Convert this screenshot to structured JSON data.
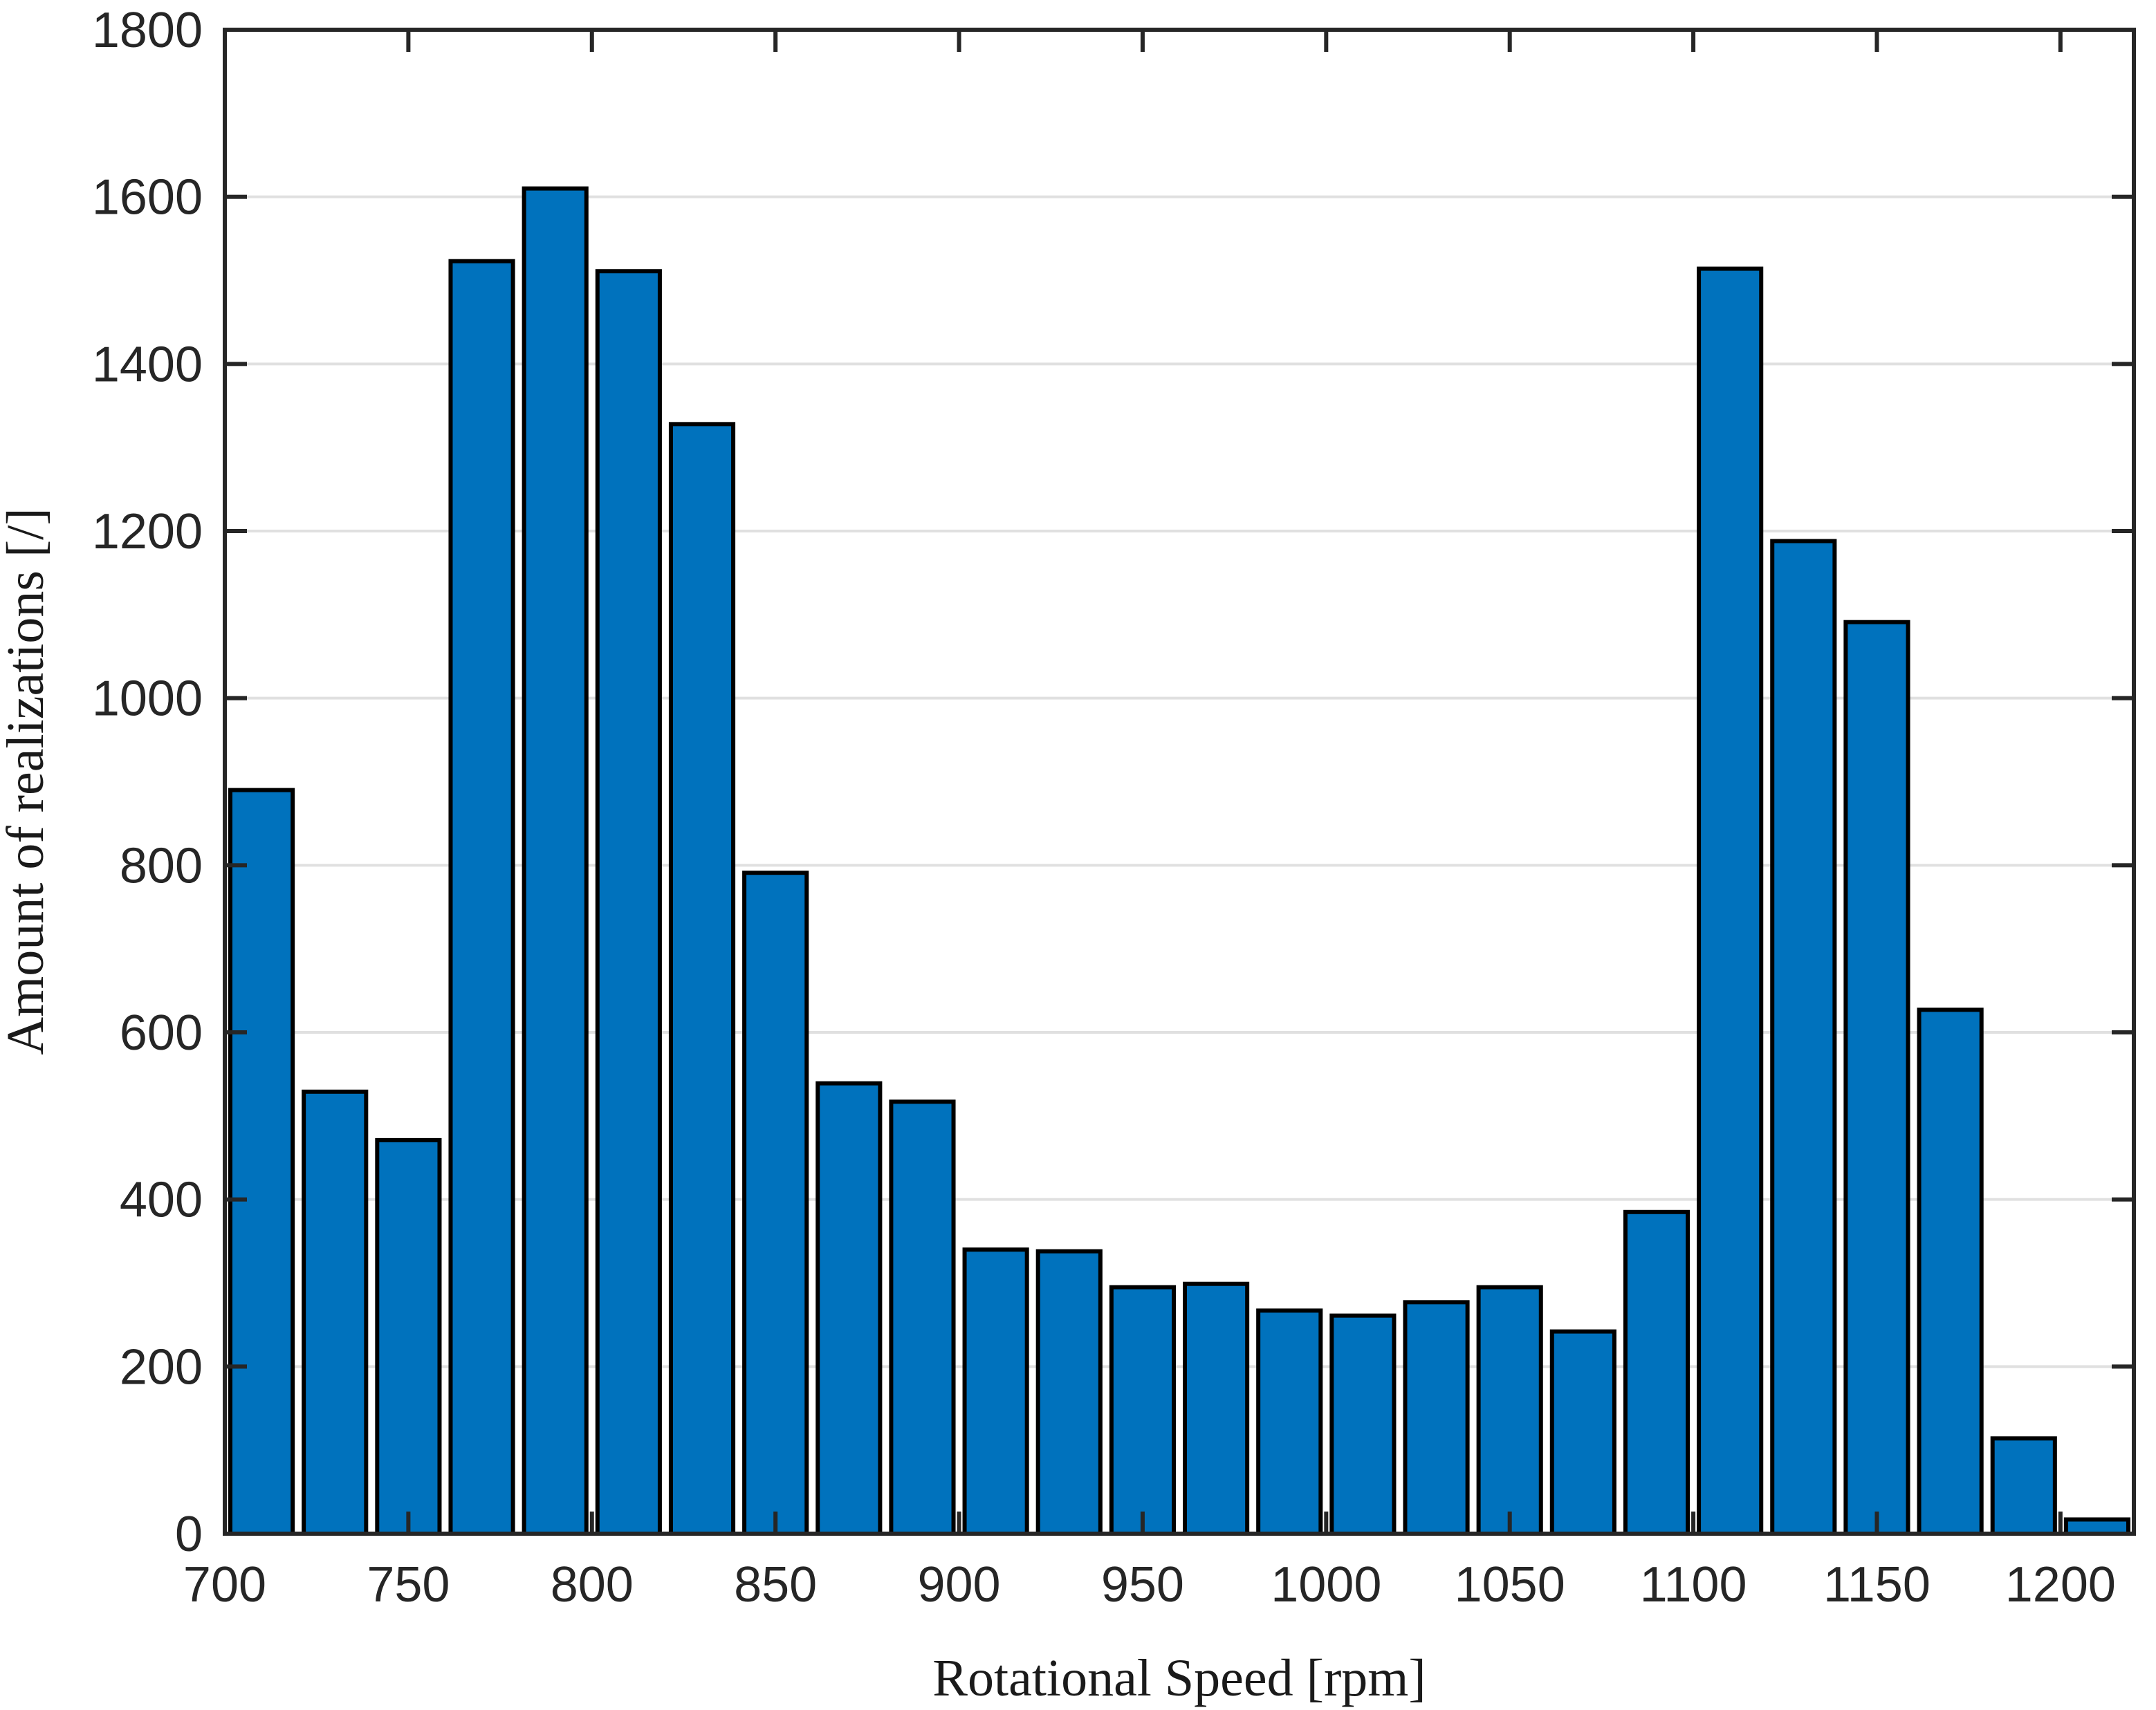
{
  "figure": {
    "background": "#FFFFFF"
  },
  "chart_data": {
    "type": "bar",
    "subtype": "histogram",
    "title": "",
    "xlabel": "Rotational Speed [rpm]",
    "ylabel": "Amount of realizations [/]",
    "xlim": [
      700,
      1220
    ],
    "ylim": [
      0,
      1800
    ],
    "bin_width": 20,
    "bin_edges": [
      700,
      720,
      740,
      760,
      780,
      800,
      820,
      840,
      860,
      880,
      900,
      920,
      940,
      960,
      980,
      1000,
      1020,
      1040,
      1060,
      1080,
      1100,
      1120,
      1140,
      1160,
      1180,
      1200,
      1220
    ],
    "values": [
      890,
      529,
      471,
      1523,
      1610,
      1511,
      1328,
      791,
      539,
      517,
      340,
      338,
      295,
      299,
      267,
      261,
      277,
      295,
      242,
      385,
      1514,
      1188,
      1091,
      627,
      114,
      17
    ],
    "x_ticks": [
      700,
      750,
      800,
      850,
      900,
      950,
      1000,
      1050,
      1100,
      1150,
      1200
    ],
    "y_ticks": [
      0,
      200,
      400,
      600,
      800,
      1000,
      1200,
      1400,
      1600,
      1800
    ],
    "grid": "horizontal-only",
    "legend": "none",
    "tick_direction": "in",
    "box": true,
    "colors": {
      "bar_fill": "#0072BD",
      "bar_edge": "#000000",
      "axis": "#262626",
      "grid": "#E0E0E0",
      "tick_label": "#262626",
      "axis_label": "#1A1A1A",
      "background": "#FFFFFF"
    }
  }
}
